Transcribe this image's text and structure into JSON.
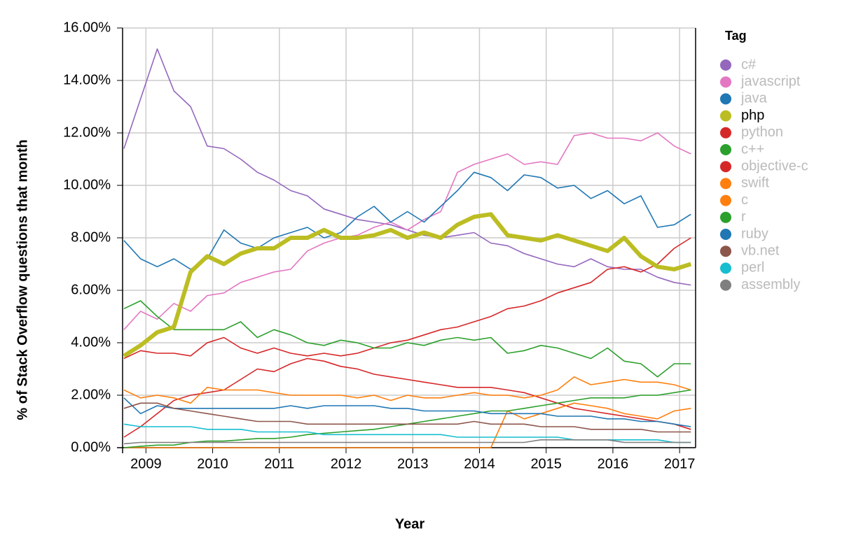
{
  "chart_data": {
    "type": "line",
    "x_label": "Year",
    "y_label": "% of Stack Overflow questions that month",
    "legend_title": "Tag",
    "x": [
      2008.67,
      2008.92,
      2009.17,
      2009.42,
      2009.67,
      2009.92,
      2010.17,
      2010.42,
      2010.67,
      2010.92,
      2011.17,
      2011.42,
      2011.67,
      2011.92,
      2012.17,
      2012.42,
      2012.67,
      2012.92,
      2013.17,
      2013.42,
      2013.67,
      2013.92,
      2014.17,
      2014.42,
      2014.67,
      2014.92,
      2015.17,
      2015.42,
      2015.67,
      2015.92,
      2016.17,
      2016.42,
      2016.67,
      2016.92,
      2017.17
    ],
    "xlim": [
      2008.65,
      2017.24
    ],
    "xticks": [
      2009,
      2010,
      2011,
      2012,
      2013,
      2014,
      2015,
      2016,
      2017
    ],
    "ylim": [
      0,
      16
    ],
    "yticks": [
      {
        "value": 0,
        "label": "0.00%"
      },
      {
        "value": 2,
        "label": "2.00%"
      },
      {
        "value": 4,
        "label": "4.00%"
      },
      {
        "value": 6,
        "label": "6.00%"
      },
      {
        "value": 8,
        "label": "8.00%"
      },
      {
        "value": 10,
        "label": "10.00%"
      },
      {
        "value": 12,
        "label": "12.00%"
      },
      {
        "value": 14,
        "label": "14.00%"
      },
      {
        "value": 16,
        "label": "16.00%"
      }
    ],
    "grid": true,
    "highlight": "php",
    "series": [
      {
        "name": "c#",
        "color": "#9467bd",
        "values": [
          11.4,
          13.3,
          15.2,
          13.6,
          13.0,
          11.5,
          11.4,
          11.0,
          10.5,
          10.2,
          9.8,
          9.6,
          9.1,
          8.9,
          8.7,
          8.6,
          8.5,
          8.3,
          8.1,
          8.0,
          8.1,
          8.2,
          7.8,
          7.7,
          7.4,
          7.2,
          7.0,
          6.9,
          7.2,
          6.9,
          6.8,
          6.8,
          6.5,
          6.3,
          6.2
        ]
      },
      {
        "name": "javascript",
        "color": "#e377c2",
        "values": [
          4.5,
          5.2,
          4.9,
          5.5,
          5.2,
          5.8,
          5.9,
          6.3,
          6.5,
          6.7,
          6.8,
          7.5,
          7.8,
          8.0,
          8.1,
          8.4,
          8.6,
          8.3,
          8.7,
          9.0,
          10.5,
          10.8,
          11.0,
          11.2,
          10.8,
          10.9,
          10.8,
          11.9,
          12.0,
          11.8,
          11.8,
          11.7,
          12.0,
          11.5,
          11.2
        ]
      },
      {
        "name": "java",
        "color": "#1f77b4",
        "values": [
          7.9,
          7.2,
          6.9,
          7.2,
          6.8,
          7.2,
          8.3,
          7.8,
          7.6,
          8.0,
          8.2,
          8.4,
          8.0,
          8.2,
          8.8,
          9.2,
          8.6,
          9.0,
          8.6,
          9.2,
          9.8,
          10.5,
          10.3,
          9.8,
          10.4,
          10.3,
          9.9,
          10.0,
          9.5,
          9.8,
          9.3,
          9.6,
          8.4,
          8.5,
          8.9
        ]
      },
      {
        "name": "php",
        "color": "#bcbd22",
        "values": [
          3.5,
          3.9,
          4.4,
          4.6,
          6.7,
          7.3,
          7.0,
          7.4,
          7.6,
          7.6,
          8.0,
          8.0,
          8.3,
          8.0,
          8.0,
          8.1,
          8.3,
          8.0,
          8.2,
          8.0,
          8.5,
          8.8,
          8.9,
          8.1,
          8.0,
          7.9,
          8.1,
          7.9,
          7.7,
          7.5,
          8.0,
          7.3,
          6.9,
          6.8,
          7.0
        ]
      },
      {
        "name": "python",
        "color": "#d62728",
        "values": [
          3.4,
          3.7,
          3.6,
          3.6,
          3.5,
          4.0,
          4.2,
          3.8,
          3.6,
          3.8,
          3.6,
          3.5,
          3.6,
          3.5,
          3.6,
          3.8,
          4.0,
          4.1,
          4.3,
          4.5,
          4.6,
          4.8,
          5.0,
          5.3,
          5.4,
          5.6,
          5.9,
          6.1,
          6.3,
          6.8,
          6.9,
          6.7,
          7.0,
          7.6,
          8.0
        ]
      },
      {
        "name": "c++",
        "color": "#2ca02c",
        "values": [
          5.3,
          5.6,
          5.0,
          4.5,
          4.5,
          4.5,
          4.5,
          4.8,
          4.2,
          4.5,
          4.3,
          4.0,
          3.9,
          4.1,
          4.0,
          3.8,
          3.8,
          4.0,
          3.9,
          4.1,
          4.2,
          4.1,
          4.2,
          3.6,
          3.7,
          3.9,
          3.8,
          3.6,
          3.4,
          3.8,
          3.3,
          3.2,
          2.7,
          3.2,
          3.2
        ]
      },
      {
        "name": "objective-c",
        "color": "#d62728",
        "values": [
          0.4,
          0.8,
          1.3,
          1.8,
          2.0,
          2.1,
          2.2,
          2.6,
          3.0,
          2.9,
          3.2,
          3.4,
          3.3,
          3.1,
          3.0,
          2.8,
          2.7,
          2.6,
          2.5,
          2.4,
          2.3,
          2.3,
          2.3,
          2.2,
          2.1,
          1.9,
          1.7,
          1.5,
          1.4,
          1.3,
          1.2,
          1.1,
          1.0,
          0.9,
          0.7
        ]
      },
      {
        "name": "swift",
        "color": "#ff7f0e",
        "values": [
          0,
          0,
          0,
          0,
          0,
          0,
          0,
          0,
          0,
          0,
          0,
          0,
          0,
          0,
          0,
          0,
          0,
          0,
          0,
          0,
          0,
          0,
          0,
          1.4,
          1.1,
          1.3,
          1.5,
          1.7,
          1.6,
          1.5,
          1.3,
          1.2,
          1.1,
          1.4,
          1.5
        ]
      },
      {
        "name": "c",
        "color": "#ff7f0e",
        "values": [
          2.2,
          1.9,
          2.0,
          1.9,
          1.7,
          2.3,
          2.2,
          2.2,
          2.2,
          2.1,
          2.0,
          2.0,
          2.0,
          2.0,
          1.9,
          2.0,
          1.8,
          2.0,
          1.9,
          1.9,
          2.0,
          2.1,
          2.0,
          2.0,
          1.9,
          2.0,
          2.2,
          2.7,
          2.4,
          2.5,
          2.6,
          2.5,
          2.5,
          2.4,
          2.2
        ]
      },
      {
        "name": "r",
        "color": "#2ca02c",
        "values": [
          0.0,
          0.05,
          0.1,
          0.1,
          0.2,
          0.25,
          0.25,
          0.3,
          0.35,
          0.35,
          0.4,
          0.5,
          0.55,
          0.6,
          0.65,
          0.7,
          0.8,
          0.9,
          1.0,
          1.1,
          1.2,
          1.3,
          1.4,
          1.4,
          1.5,
          1.6,
          1.7,
          1.8,
          1.9,
          1.9,
          1.9,
          2.0,
          2.0,
          2.1,
          2.2
        ]
      },
      {
        "name": "ruby",
        "color": "#1f77b4",
        "values": [
          1.9,
          1.3,
          1.6,
          1.5,
          1.5,
          1.5,
          1.5,
          1.5,
          1.5,
          1.5,
          1.6,
          1.5,
          1.6,
          1.6,
          1.6,
          1.6,
          1.5,
          1.5,
          1.4,
          1.4,
          1.4,
          1.4,
          1.3,
          1.3,
          1.3,
          1.3,
          1.2,
          1.2,
          1.2,
          1.1,
          1.1,
          1.0,
          1.0,
          0.9,
          0.8
        ]
      },
      {
        "name": "vb.net",
        "color": "#8c564b",
        "values": [
          1.5,
          1.7,
          1.7,
          1.5,
          1.4,
          1.3,
          1.2,
          1.1,
          1.0,
          1.0,
          1.0,
          0.9,
          0.9,
          0.9,
          0.9,
          0.9,
          0.9,
          0.9,
          0.9,
          0.9,
          0.9,
          1.0,
          0.9,
          0.9,
          0.9,
          0.8,
          0.8,
          0.8,
          0.7,
          0.7,
          0.7,
          0.7,
          0.6,
          0.6,
          0.6
        ]
      },
      {
        "name": "perl",
        "color": "#17becf",
        "values": [
          0.9,
          0.8,
          0.8,
          0.8,
          0.8,
          0.7,
          0.7,
          0.7,
          0.6,
          0.6,
          0.6,
          0.6,
          0.5,
          0.5,
          0.5,
          0.5,
          0.5,
          0.5,
          0.5,
          0.5,
          0.4,
          0.4,
          0.4,
          0.4,
          0.4,
          0.4,
          0.4,
          0.3,
          0.3,
          0.3,
          0.3,
          0.3,
          0.3,
          0.2,
          0.2
        ]
      },
      {
        "name": "assembly",
        "color": "#7f7f7f",
        "values": [
          0.15,
          0.2,
          0.2,
          0.2,
          0.2,
          0.2,
          0.2,
          0.2,
          0.2,
          0.2,
          0.2,
          0.2,
          0.2,
          0.2,
          0.2,
          0.2,
          0.2,
          0.2,
          0.2,
          0.2,
          0.2,
          0.2,
          0.2,
          0.2,
          0.2,
          0.3,
          0.3,
          0.3,
          0.3,
          0.3,
          0.2,
          0.2,
          0.2,
          0.2,
          0.2
        ]
      }
    ]
  }
}
